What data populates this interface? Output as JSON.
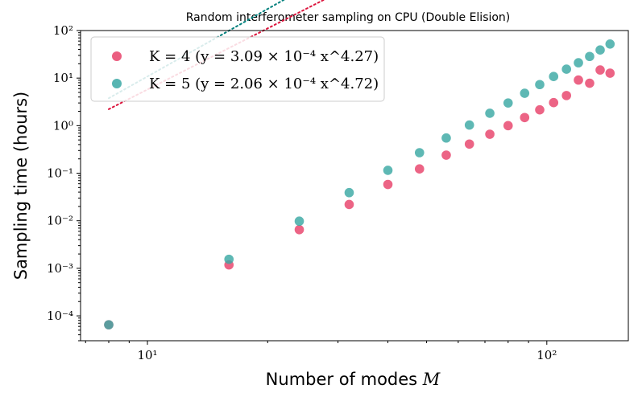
{
  "chart_data": {
    "type": "scatter",
    "title": "Random interferometer sampling on CPU (Double Elision)",
    "xlabel": "Number of modes M",
    "ylabel": "Sampling time (hours)",
    "xscale": "log",
    "yscale": "log",
    "xlim": [
      6.8,
      160
    ],
    "ylim": [
      3e-05,
      100
    ],
    "x_ticks": [
      {
        "value": 10,
        "label": "10¹"
      },
      {
        "value": 100,
        "label": "10²"
      }
    ],
    "y_ticks": [
      {
        "value": 0.0001,
        "label": "10⁻⁴"
      },
      {
        "value": 0.001,
        "label": "10⁻³"
      },
      {
        "value": 0.01,
        "label": "10⁻²"
      },
      {
        "value": 0.1,
        "label": "10⁻¹"
      },
      {
        "value": 1,
        "label": "10⁰"
      },
      {
        "value": 10,
        "label": "10¹"
      },
      {
        "value": 100,
        "label": "10²"
      }
    ],
    "legend_position": "top-left",
    "series": [
      {
        "name": "K = 4 (y = 3.09 × 10⁻⁴ x^4.27)",
        "color": "#e8426a",
        "fit_color": "#dc143c",
        "fit": {
          "a": 0.000309,
          "b": 4.27
        },
        "x": [
          8,
          16,
          24,
          32,
          40,
          48,
          56,
          64,
          72,
          80,
          88,
          96,
          104,
          112,
          120,
          128,
          136,
          144
        ],
        "y": [
          6.5e-05,
          0.00118,
          0.0065,
          0.022,
          0.058,
          0.123,
          0.24,
          0.41,
          0.66,
          1.0,
          1.48,
          2.15,
          3.05,
          4.3,
          9.1,
          7.8,
          14.8,
          12.7
        ]
      },
      {
        "name": "K = 5 (y = 2.06 × 10⁻⁴ x^4.72)",
        "color": "#3aa8a4",
        "fit_color": "#00807d",
        "fit": {
          "a": 0.000206,
          "b": 4.72
        },
        "x": [
          8,
          16,
          24,
          32,
          40,
          48,
          56,
          64,
          72,
          80,
          88,
          96,
          104,
          112,
          120,
          128,
          136,
          144
        ],
        "y": [
          6.5e-05,
          0.00155,
          0.0098,
          0.039,
          0.115,
          0.27,
          0.55,
          1.03,
          1.82,
          3.0,
          4.8,
          7.3,
          10.8,
          15.4,
          21.0,
          28.5,
          39.0,
          52.0
        ]
      }
    ]
  }
}
